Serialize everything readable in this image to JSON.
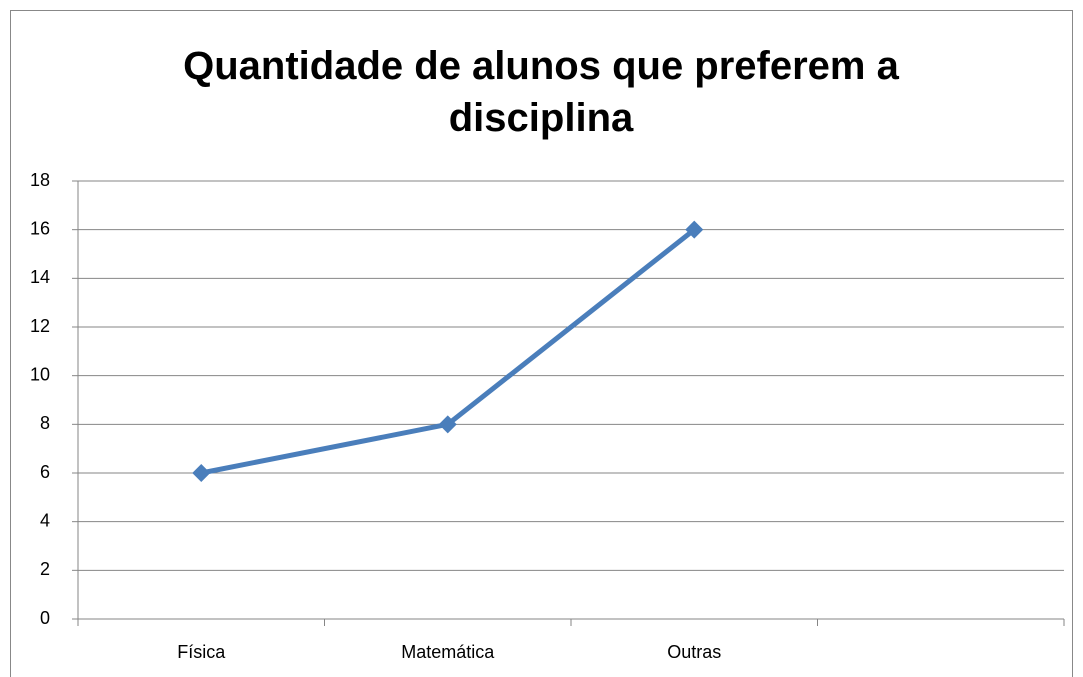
{
  "chart_data": {
    "type": "line",
    "title": "Quantidade de alunos que preferem a disciplina",
    "categories": [
      "Física",
      "Matemática",
      "Outras",
      null
    ],
    "values": [
      6,
      8,
      16,
      null
    ],
    "color": "#4a7ebb",
    "ylim": [
      0,
      18
    ],
    "yticks": [
      0,
      2,
      4,
      6,
      8,
      10,
      12,
      14,
      16,
      18
    ],
    "grid": true
  }
}
